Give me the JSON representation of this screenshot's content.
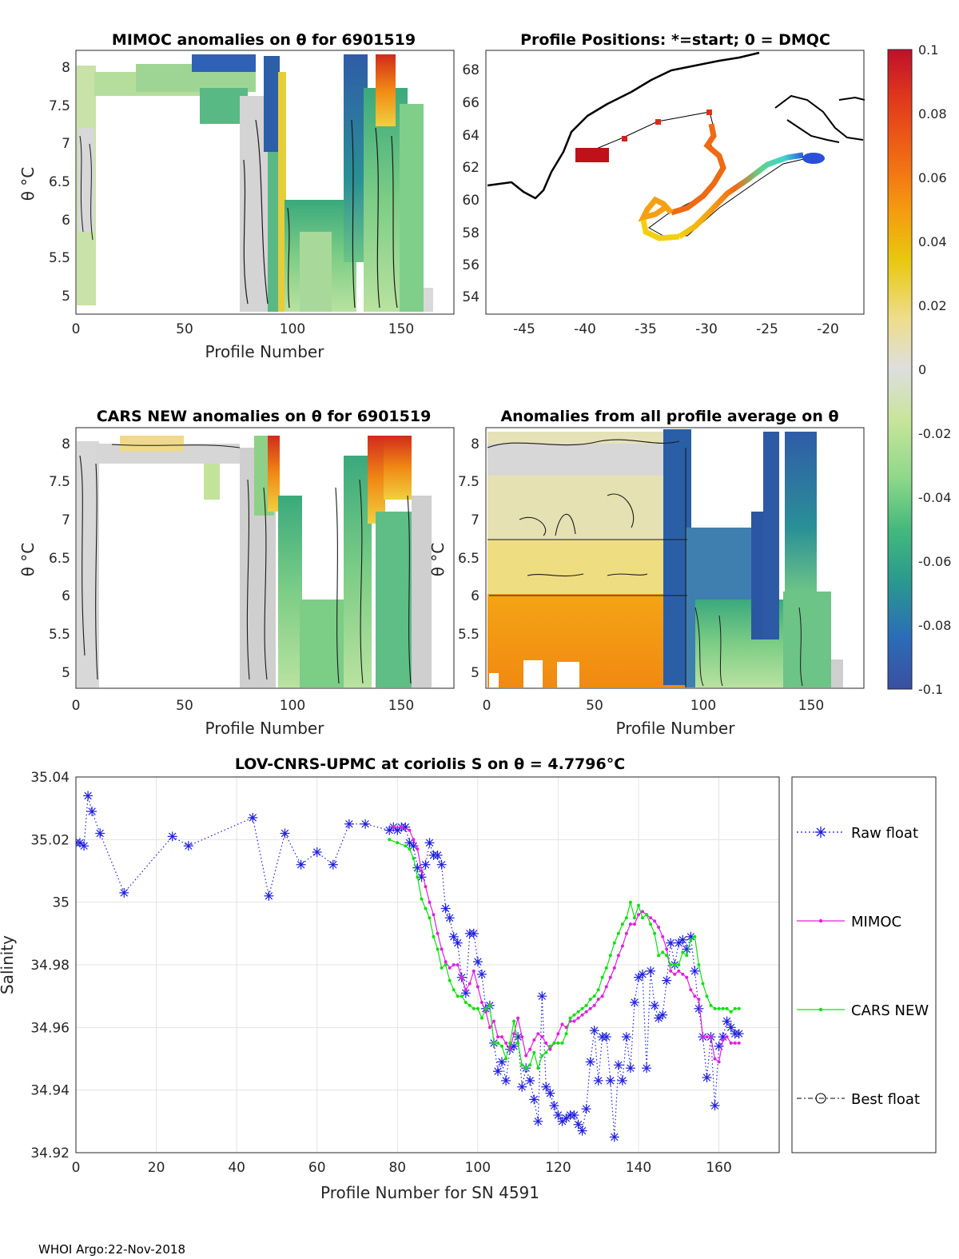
{
  "panels": {
    "mimoc": {
      "title": "MIMOC anomalies on θ  for 6901519",
      "xlabel": "Profile Number",
      "ylabel": "θ °C",
      "xticks": [
        "0",
        "50",
        "100",
        "150"
      ],
      "yticks": [
        "8",
        "7.5",
        "7",
        "6.5",
        "6",
        "5.5",
        "5"
      ]
    },
    "positions": {
      "title": "Profile Positions: *=start; 0 = DMQC",
      "xticks": [
        "-45",
        "-40",
        "-35",
        "-30",
        "-25",
        "-20"
      ],
      "yticks": [
        "68",
        "66",
        "64",
        "62",
        "60",
        "58",
        "56",
        "54"
      ]
    },
    "cars": {
      "title": "CARS NEW anomalies on θ for 6901519",
      "xlabel": "Profile Number",
      "ylabel": "θ °C",
      "xticks": [
        "0",
        "50",
        "100",
        "150"
      ],
      "yticks": [
        "8",
        "7.5",
        "7",
        "6.5",
        "6",
        "5.5",
        "5"
      ]
    },
    "allavg": {
      "title": "Anomalies from all profile average on θ",
      "xlabel": "Profile Number",
      "ylabel": "θ °C",
      "xticks": [
        "0",
        "50",
        "100",
        "150"
      ],
      "yticks": [
        "8",
        "7.5",
        "7",
        "6.5",
        "6",
        "5.5",
        "5"
      ]
    }
  },
  "colorbar": {
    "ticks": [
      "0.1",
      "0.08",
      "0.06",
      "0.04",
      "0.02",
      "0",
      "-0.02",
      "-0.04",
      "-0.06",
      "-0.08",
      "-0.1"
    ],
    "colors": [
      "#c0102a",
      "#e23a1c",
      "#f06a14",
      "#f59a10",
      "#e8c810",
      "#eedd8a",
      "#dedede",
      "#c7e59a",
      "#8ed88a",
      "#44b97c",
      "#2a9a8e",
      "#2b6cb8",
      "#3a4fa0"
    ]
  },
  "chart_data": {
    "type": "line",
    "title": "LOV-CNRS-UPMC at coriolis S on θ = 4.7796°C",
    "xlabel": "Profile Number for SN 4591",
    "ylabel": "Salinity",
    "xlim": [
      0,
      175
    ],
    "ylim": [
      34.92,
      35.04
    ],
    "xticks": [
      "0",
      "20",
      "40",
      "60",
      "80",
      "100",
      "120",
      "140",
      "160"
    ],
    "yticks": [
      "35.04",
      "35.02",
      "35",
      "34.98",
      "34.96",
      "34.94",
      "34.92"
    ],
    "grid": true,
    "legend": [
      "Raw float",
      "MIMOC",
      "CARS NEW",
      "Best float"
    ],
    "series": [
      {
        "name": "Raw float",
        "color": "#1f1fe0",
        "style": "dotted-star",
        "x": [
          0,
          1,
          2,
          3,
          4,
          6,
          12,
          24,
          28,
          44,
          48,
          52,
          56,
          60,
          64,
          68,
          72,
          78,
          79,
          80,
          81,
          82,
          83,
          84,
          85,
          86,
          87,
          88,
          89,
          90,
          91,
          92,
          93,
          94,
          95,
          96,
          97,
          98,
          99,
          100,
          101,
          102,
          103,
          104,
          105,
          106,
          107,
          108,
          109,
          110,
          111,
          112,
          113,
          114,
          115,
          116,
          117,
          118,
          119,
          120,
          121,
          122,
          123,
          124,
          125,
          126,
          127,
          128,
          129,
          130,
          131,
          132,
          133,
          134,
          135,
          136,
          137,
          138,
          139,
          140,
          141,
          142,
          143,
          144,
          145,
          146,
          147,
          148,
          149,
          150,
          151,
          152,
          153,
          154,
          155,
          156,
          157,
          158,
          159,
          160,
          161,
          162,
          163,
          164,
          165
        ],
        "y": [
          35.019,
          35.019,
          35.018,
          35.034,
          35.029,
          35.022,
          35.003,
          35.021,
          35.018,
          35.027,
          35.002,
          35.022,
          35.012,
          35.016,
          35.012,
          35.025,
          35.025,
          35.023,
          35.024,
          35.023,
          35.024,
          35.024,
          35.019,
          35.018,
          35.011,
          35.008,
          35.012,
          35.019,
          35.015,
          35.015,
          35.012,
          34.998,
          34.995,
          34.989,
          34.987,
          34.976,
          34.971,
          34.99,
          34.99,
          34.981,
          34.977,
          34.966,
          34.967,
          34.955,
          34.946,
          34.949,
          34.943,
          34.953,
          34.954,
          34.957,
          34.941,
          34.947,
          34.943,
          34.937,
          34.93,
          34.97,
          34.941,
          34.939,
          34.935,
          34.932,
          34.93,
          34.931,
          34.932,
          34.932,
          34.929,
          34.927,
          34.934,
          34.949,
          34.959,
          34.943,
          34.957,
          34.957,
          34.943,
          34.925,
          34.948,
          34.943,
          34.957,
          34.947,
          34.968,
          34.976,
          34.977,
          34.947,
          34.978,
          34.967,
          34.963,
          34.964,
          34.975,
          34.987,
          34.98,
          34.987,
          34.988,
          34.985,
          34.989,
          34.978,
          34.966,
          34.957,
          34.944,
          34.957,
          34.935,
          34.954,
          34.957,
          34.962,
          34.96,
          34.958,
          34.958
        ]
      },
      {
        "name": "MIMOC",
        "color": "#e020e0",
        "style": "solid-dot",
        "x": [
          79,
          81,
          83,
          84,
          85,
          86,
          87,
          88,
          89,
          90,
          91,
          92,
          93,
          94,
          95,
          96,
          97,
          98,
          99,
          100,
          101,
          102,
          103,
          104,
          105,
          106,
          107,
          108,
          109,
          110,
          111,
          112,
          113,
          114,
          115,
          116,
          117,
          118,
          119,
          120,
          121,
          122,
          123,
          124,
          125,
          126,
          127,
          128,
          129,
          130,
          131,
          132,
          133,
          134,
          135,
          136,
          137,
          138,
          139,
          140,
          141,
          142,
          143,
          144,
          145,
          146,
          147,
          148,
          149,
          150,
          151,
          152,
          153,
          154,
          155,
          156,
          157,
          158,
          159,
          160,
          161,
          162,
          163,
          164,
          165
        ],
        "y": [
          35.024,
          35.024,
          35.023,
          35.02,
          35.017,
          35.01,
          35.005,
          35.0,
          34.996,
          34.99,
          34.985,
          34.981,
          34.979,
          34.98,
          34.98,
          34.976,
          34.972,
          34.974,
          34.978,
          34.973,
          34.968,
          34.965,
          34.96,
          34.962,
          34.957,
          34.957,
          34.955,
          34.953,
          34.958,
          34.963,
          34.957,
          34.951,
          34.953,
          34.956,
          34.958,
          34.957,
          34.955,
          34.953,
          34.955,
          34.958,
          34.961,
          34.96,
          34.962,
          34.962,
          34.963,
          34.964,
          34.965,
          34.966,
          34.967,
          34.969,
          34.97,
          34.973,
          34.976,
          34.979,
          34.983,
          34.986,
          34.99,
          34.993,
          34.993,
          34.996,
          34.997,
          34.996,
          34.995,
          34.994,
          34.992,
          34.989,
          34.985,
          34.978,
          34.977,
          34.978,
          34.977,
          34.976,
          34.972,
          34.97,
          34.969,
          34.957,
          34.957,
          34.957,
          34.95,
          34.949,
          34.956,
          34.957,
          34.955,
          34.955,
          34.955
        ]
      },
      {
        "name": "CARS NEW",
        "color": "#10e010",
        "style": "solid-dot",
        "x": [
          78,
          80,
          82,
          83,
          84,
          85,
          86,
          87,
          88,
          89,
          90,
          91,
          92,
          93,
          94,
          95,
          96,
          97,
          98,
          99,
          100,
          101,
          102,
          103,
          104,
          105,
          106,
          107,
          108,
          109,
          110,
          111,
          112,
          113,
          114,
          115,
          116,
          117,
          118,
          119,
          120,
          121,
          122,
          123,
          124,
          125,
          126,
          127,
          128,
          129,
          130,
          131,
          132,
          133,
          134,
          135,
          136,
          137,
          138,
          139,
          140,
          141,
          142,
          143,
          144,
          145,
          146,
          147,
          148,
          149,
          150,
          151,
          152,
          153,
          154,
          155,
          156,
          157,
          158,
          159,
          160,
          161,
          162,
          163,
          164,
          165
        ],
        "y": [
          35.02,
          35.019,
          35.018,
          35.017,
          35.014,
          35.008,
          35.001,
          34.998,
          34.995,
          34.989,
          34.985,
          34.979,
          34.98,
          34.975,
          34.972,
          34.97,
          34.97,
          34.968,
          34.967,
          34.966,
          34.966,
          34.963,
          34.966,
          34.967,
          34.955,
          34.955,
          34.954,
          34.95,
          34.955,
          34.962,
          34.955,
          34.948,
          34.947,
          34.948,
          34.952,
          34.947,
          34.951,
          34.952,
          34.954,
          34.955,
          34.955,
          34.955,
          34.958,
          34.963,
          34.964,
          34.965,
          34.966,
          34.967,
          34.969,
          34.97,
          34.972,
          34.976,
          34.979,
          34.983,
          34.987,
          34.99,
          34.993,
          34.995,
          35.0,
          34.995,
          34.999,
          34.995,
          34.996,
          34.993,
          34.99,
          34.983,
          34.984,
          34.983,
          34.98,
          34.98,
          34.98,
          34.984,
          34.983,
          34.988,
          34.989,
          34.98,
          34.974,
          34.97,
          34.967,
          34.966,
          34.966,
          34.966,
          34.966,
          34.965,
          34.966,
          34.966
        ]
      },
      {
        "name": "Best float",
        "color": "#000000",
        "style": "dashdot-circle",
        "x": [],
        "y": []
      }
    ]
  },
  "footer": "WHOI Argo:22-Nov-2018"
}
